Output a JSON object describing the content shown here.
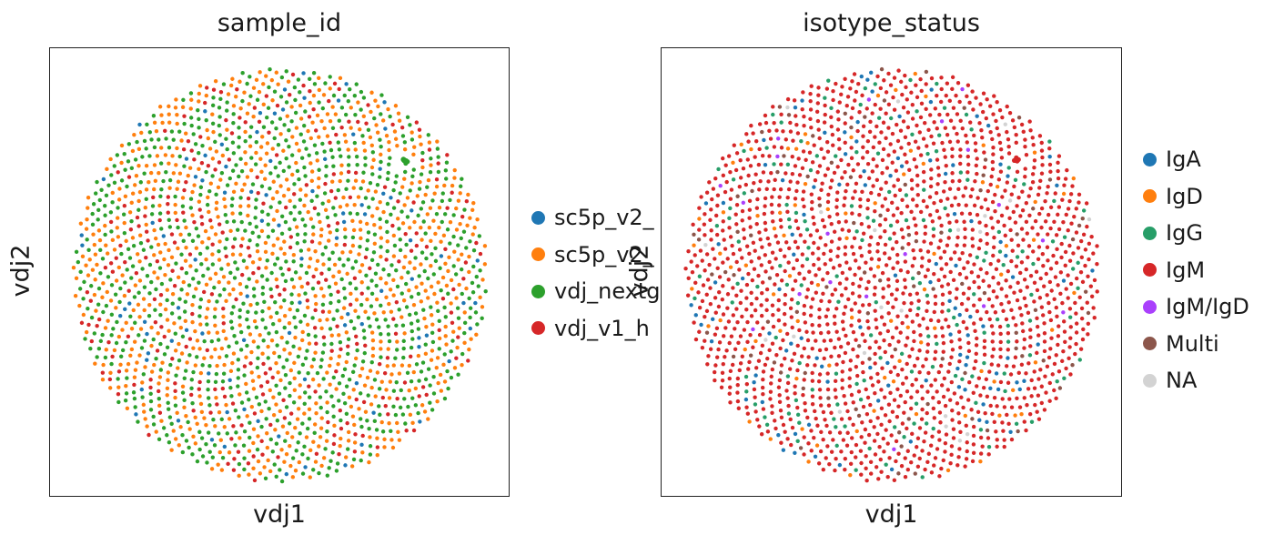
{
  "chart_data": [
    {
      "type": "scatter",
      "title": "sample_id",
      "xlabel": "vdj1",
      "ylabel": "vdj2",
      "grid": false,
      "ticks": false,
      "legend_position": "right",
      "legend_clipped": true,
      "layout_shape": "circle",
      "approx_point_count": 2200,
      "series": [
        {
          "name": "sc5p_v2_",
          "color": "#1f77b4",
          "share": 0.04
        },
        {
          "name": "sc5p_v2_",
          "color": "#ff7f0e",
          "share": 0.4
        },
        {
          "name": "vdj_nextg",
          "color": "#2ca02c",
          "share": 0.42
        },
        {
          "name": "vdj_v1_h",
          "color": "#d62728",
          "share": 0.14
        }
      ],
      "clusters": [
        {
          "series": "vdj_nextg",
          "x": 0.77,
          "y": 0.75
        }
      ]
    },
    {
      "type": "scatter",
      "title": "isotype_status",
      "xlabel": "vdj1",
      "ylabel": "vdj2",
      "grid": false,
      "ticks": false,
      "legend_position": "right",
      "layout_shape": "circle",
      "approx_point_count": 2200,
      "series": [
        {
          "name": "IgA",
          "color": "#1f77b4",
          "share": 0.06
        },
        {
          "name": "IgD",
          "color": "#ff7f0e",
          "share": 0.04
        },
        {
          "name": "IgG",
          "color": "#279e68",
          "share": 0.08
        },
        {
          "name": "IgM",
          "color": "#d62728",
          "share": 0.76
        },
        {
          "name": "IgM/IgD",
          "color": "#aa40fc",
          "share": 0.01
        },
        {
          "name": "Multi",
          "color": "#8c564b",
          "share": 0.04
        },
        {
          "name": "NA",
          "color": "#d3d3d3",
          "share": 0.01
        }
      ],
      "clusters": [
        {
          "series": "IgM",
          "x": 0.77,
          "y": 0.75
        }
      ]
    }
  ],
  "colors": {
    "frame": "#222222",
    "background": "#ffffff"
  }
}
